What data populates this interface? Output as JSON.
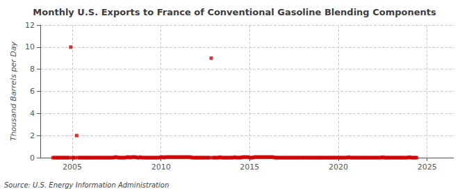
{
  "chart_data": {
    "type": "scatter",
    "title": "Monthly U.S. Exports to France of Conventional Gasoline Blending Components",
    "ylabel": "Thousand Barrels per Day",
    "annotations": [
      "Source: U.S. Energy Information Administration"
    ],
    "color": "#cc0000",
    "marker": "square",
    "grid": true,
    "xlim": [
      2003.2,
      2026.5
    ],
    "xticks": [
      2005,
      2010,
      2015,
      2020,
      2025
    ],
    "ylim": [
      0,
      12
    ],
    "yticks": [
      0,
      2,
      4,
      6,
      8,
      10,
      12
    ],
    "x": [
      2003.917,
      2004.0,
      2004.083,
      2004.167,
      2004.25,
      2004.333,
      2004.417,
      2004.5,
      2004.583,
      2004.667,
      2004.75,
      2004.833,
      2004.917,
      2005.0,
      2005.083,
      2005.167,
      2005.25,
      2005.333,
      2005.417,
      2005.5,
      2005.583,
      2005.667,
      2005.75,
      2005.833,
      2005.917,
      2006.0,
      2006.083,
      2006.167,
      2006.25,
      2006.333,
      2006.417,
      2006.5,
      2006.583,
      2006.667,
      2006.75,
      2006.833,
      2006.917,
      2007.0,
      2007.083,
      2007.167,
      2007.25,
      2007.333,
      2007.417,
      2007.5,
      2007.583,
      2007.667,
      2007.75,
      2007.833,
      2007.917,
      2008.0,
      2008.083,
      2008.167,
      2008.25,
      2008.333,
      2008.417,
      2008.5,
      2008.583,
      2008.667,
      2008.75,
      2008.833,
      2008.917,
      2009.0,
      2009.083,
      2009.167,
      2009.25,
      2009.333,
      2009.417,
      2009.5,
      2009.583,
      2009.667,
      2009.75,
      2009.833,
      2009.917,
      2010.0,
      2010.083,
      2010.167,
      2010.25,
      2010.333,
      2010.417,
      2010.5,
      2010.583,
      2010.667,
      2010.75,
      2010.833,
      2010.917,
      2011.0,
      2011.083,
      2011.167,
      2011.25,
      2011.333,
      2011.417,
      2011.5,
      2011.583,
      2011.667,
      2011.75,
      2011.833,
      2011.917,
      2012.0,
      2012.083,
      2012.167,
      2012.25,
      2012.333,
      2012.417,
      2012.5,
      2012.583,
      2012.667,
      2012.75,
      2012.833,
      2012.917,
      2013.0,
      2013.083,
      2013.167,
      2013.25,
      2013.333,
      2013.417,
      2013.5,
      2013.583,
      2013.667,
      2013.75,
      2013.833,
      2013.917,
      2014.0,
      2014.083,
      2014.167,
      2014.25,
      2014.333,
      2014.417,
      2014.5,
      2014.583,
      2014.667,
      2014.75,
      2014.833,
      2014.917,
      2015.0,
      2015.083,
      2015.167,
      2015.25,
      2015.333,
      2015.417,
      2015.5,
      2015.583,
      2015.667,
      2015.75,
      2015.833,
      2015.917,
      2016.0,
      2016.083,
      2016.167,
      2016.25,
      2016.333,
      2016.417,
      2016.5,
      2016.583,
      2016.667,
      2016.75,
      2016.833,
      2016.917,
      2017.0,
      2017.083,
      2017.167,
      2017.25,
      2017.333,
      2017.417,
      2017.5,
      2017.583,
      2017.667,
      2017.75,
      2017.833,
      2017.917,
      2018.0,
      2018.083,
      2018.167,
      2018.25,
      2018.333,
      2018.417,
      2018.5,
      2018.583,
      2018.667,
      2018.75,
      2018.833,
      2018.917,
      2019.0,
      2019.083,
      2019.167,
      2019.25,
      2019.333,
      2019.417,
      2019.5,
      2019.583,
      2019.667,
      2019.75,
      2019.833,
      2019.917,
      2020.0,
      2020.083,
      2020.167,
      2020.25,
      2020.333,
      2020.417,
      2020.5,
      2020.583,
      2020.667,
      2020.75,
      2020.833,
      2020.917,
      2021.0,
      2021.083,
      2021.167,
      2021.25,
      2021.333,
      2021.417,
      2021.5,
      2021.583,
      2021.667,
      2021.75,
      2021.833,
      2021.917,
      2022.0,
      2022.083,
      2022.167,
      2022.25,
      2022.333,
      2022.417,
      2022.5,
      2022.583,
      2022.667,
      2022.75,
      2022.833,
      2022.917,
      2023.0,
      2023.083,
      2023.167,
      2023.25,
      2023.333,
      2023.417,
      2023.5,
      2023.583,
      2023.667,
      2023.75,
      2023.833,
      2023.917,
      2024.0,
      2024.083,
      2024.167,
      2024.25,
      2024.333,
      2024.417
    ],
    "values": [
      0.0,
      0.0,
      0.0,
      0.0,
      0.0,
      0.0,
      0.0,
      0.0,
      0.0,
      0.0,
      0.0,
      0.0,
      10.0,
      0.0,
      0.0,
      0.0,
      2.0,
      0.0,
      0.0,
      0.0,
      0.0,
      0.0,
      0.0,
      0.0,
      0.0,
      0.0,
      0.0,
      0.0,
      0.0,
      0.0,
      0.0,
      0.0,
      0.0,
      0.0,
      0.0,
      0.0,
      0.0,
      0.0,
      0.0,
      0.0,
      0.0,
      0.0,
      0.05,
      0.05,
      0.0,
      0.0,
      0.0,
      0.0,
      0.0,
      0.0,
      0.05,
      0.05,
      0.0,
      0.05,
      0.05,
      0.05,
      0.05,
      0.0,
      0.0,
      0.05,
      0.0,
      0.0,
      0.0,
      0.0,
      0.0,
      0.0,
      0.0,
      0.0,
      0.0,
      0.0,
      0.0,
      0.0,
      0.0,
      0.05,
      0.05,
      0.0,
      0.05,
      0.05,
      0.05,
      0.05,
      0.05,
      0.05,
      0.05,
      0.05,
      0.05,
      0.05,
      0.05,
      0.05,
      0.05,
      0.05,
      0.05,
      0.05,
      0.05,
      0.05,
      0.0,
      0.0,
      0.0,
      0.0,
      0.0,
      0.0,
      0.0,
      0.0,
      0.0,
      0.0,
      0.0,
      0.0,
      0.0,
      9.0,
      0.0,
      0.0,
      0.0,
      0.0,
      0.0,
      0.05,
      0.0,
      0.0,
      0.0,
      0.0,
      0.0,
      0.0,
      0.0,
      0.0,
      0.0,
      0.05,
      0.0,
      0.0,
      0.0,
      0.0,
      0.05,
      0.05,
      0.05,
      0.05,
      0.05,
      0.0,
      0.0,
      0.0,
      0.05,
      0.05,
      0.05,
      0.05,
      0.05,
      0.05,
      0.05,
      0.05,
      0.05,
      0.05,
      0.05,
      0.05,
      0.05,
      0.05,
      0.0,
      0.0,
      0.0,
      0.0,
      0.0,
      0.0,
      0.0,
      0.0,
      0.0,
      0.0,
      0.0,
      0.0,
      0.0,
      0.0,
      0.0,
      0.0,
      0.0,
      0.0,
      0.0,
      0.0,
      0.0,
      0.0,
      0.0,
      0.0,
      0.0,
      0.0,
      0.0,
      0.0,
      0.0,
      0.0,
      0.0,
      0.0,
      0.0,
      0.0,
      0.0,
      0.0,
      0.0,
      0.0,
      0.0,
      0.0,
      0.0,
      0.0,
      0.0,
      0.0,
      0.0,
      0.0,
      0.0,
      0.0,
      0.0,
      0.0,
      0.05,
      0.0,
      0.0,
      0.0,
      0.0,
      0.0,
      0.0,
      0.0,
      0.0,
      0.0,
      0.0,
      0.0,
      0.0,
      0.0,
      0.0,
      0.0,
      0.0,
      0.0,
      0.0,
      0.0,
      0.0,
      0.0,
      0.0,
      0.05,
      0.0,
      0.0,
      0.0,
      0.0,
      0.0,
      0.0,
      0.0,
      0.0,
      0.0,
      0.0,
      0.0,
      0.0,
      0.0,
      0.0,
      0.0,
      0.0,
      0.0,
      0.05,
      0.0,
      0.0,
      0.0,
      0.0,
      0.0
    ]
  }
}
